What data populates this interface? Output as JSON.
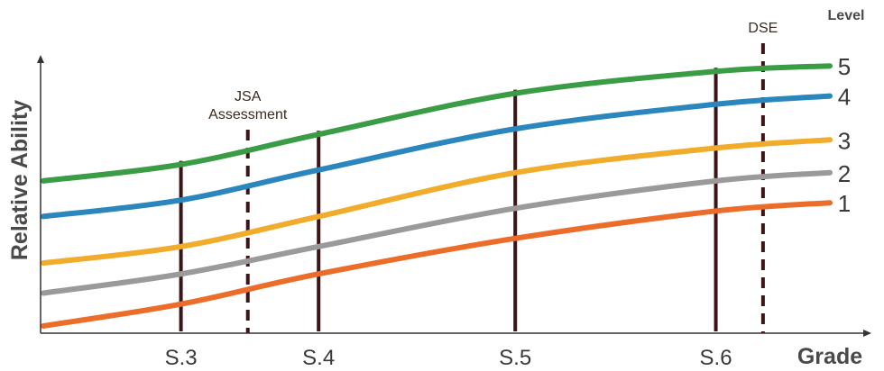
{
  "chart_data": {
    "type": "line",
    "xlabel": "Grade",
    "ylabel": "Relative Ability",
    "legend_title": "Level",
    "grid": false,
    "legend_position": "right (labels at line ends)",
    "x_range": [
      0,
      9
    ],
    "y_range": [
      0,
      10
    ],
    "x_ticks": [
      {
        "label": "S.3",
        "x": 1.75
      },
      {
        "label": "S.4",
        "x": 3.5
      },
      {
        "label": "S.5",
        "x": 6.0
      },
      {
        "label": "S.6",
        "x": 8.55
      }
    ],
    "annotations": [
      {
        "label_lines": [
          "JSA",
          "Assessment"
        ],
        "x": 2.6,
        "style": "dashed"
      },
      {
        "label_lines": [
          "DSE"
        ],
        "x": 9.15,
        "style": "dashed"
      }
    ],
    "series": [
      {
        "name": "5",
        "color": "#3a9c44",
        "x": [
          0,
          1.75,
          3.5,
          6.0,
          8.55,
          10
        ],
        "y": [
          5.3,
          5.9,
          7.0,
          8.5,
          9.3,
          9.5
        ]
      },
      {
        "name": "4",
        "color": "#2a86bd",
        "x": [
          0,
          1.75,
          3.5,
          6.0,
          8.55,
          10
        ],
        "y": [
          4.0,
          4.6,
          5.7,
          7.2,
          8.1,
          8.4
        ]
      },
      {
        "name": "3",
        "color": "#f0ac2a",
        "x": [
          0,
          1.75,
          3.5,
          6.0,
          8.55,
          10
        ],
        "y": [
          2.3,
          2.9,
          4.0,
          5.6,
          6.5,
          6.8
        ]
      },
      {
        "name": "2",
        "color": "#9a9a9a",
        "x": [
          0,
          1.75,
          3.5,
          6.0,
          8.55,
          10
        ],
        "y": [
          1.2,
          1.9,
          2.9,
          4.3,
          5.3,
          5.6
        ]
      },
      {
        "name": "1",
        "color": "#ec6d2a",
        "x": [
          0,
          1.75,
          3.5,
          6.0,
          8.55,
          10
        ],
        "y": [
          0,
          0.8,
          1.9,
          3.2,
          4.2,
          4.5
        ]
      }
    ]
  }
}
